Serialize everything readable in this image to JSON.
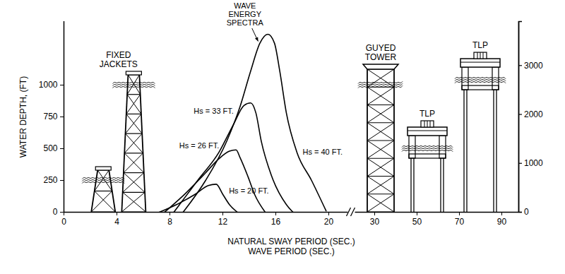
{
  "chart_data": {
    "type": "line",
    "xlabel": "NATURAL SWAY PERIOD (SEC.)\nWAVE PERIOD (SEC.)",
    "ylabel": "WATER DEPTH, (FT)",
    "annotation": "WAVE\nENERGY\nSPECTRA",
    "xlim": [
      0,
      98
    ],
    "xticks": [
      0,
      4,
      8,
      12,
      16,
      20,
      30,
      50,
      70,
      90
    ],
    "ylim": [
      0,
      1500
    ],
    "yticks": [
      0,
      250,
      500,
      750,
      1000
    ],
    "y2lim": [
      0,
      3900
    ],
    "y2ticks": [
      0,
      1000,
      2000,
      3000
    ],
    "grid": false,
    "series": [
      {
        "name": "Hs = 20 FT.",
        "color": "#000000",
        "x": [
          7.2,
          8.5,
          9.9,
          10.9,
          11.5,
          12.0,
          12.5,
          13.1
        ],
        "values": [
          0,
          60,
          140,
          210,
          220,
          140,
          60,
          0
        ]
      },
      {
        "name": "Hs = 26 FT.",
        "color": "#000000",
        "x": [
          7.6,
          9.1,
          10.7,
          11.7,
          12.5,
          13.0,
          13.3,
          13.9,
          14.4,
          15.2
        ],
        "values": [
          0,
          140,
          310,
          420,
          480,
          490,
          430,
          280,
          140,
          0
        ]
      },
      {
        "name": "Hs = 33 FT.",
        "color": "#000000",
        "x": [
          8.3,
          10.1,
          11.7,
          12.8,
          13.6,
          14.1,
          14.5,
          14.9,
          15.7,
          16.8,
          17.3
        ],
        "values": [
          0,
          250,
          470,
          690,
          840,
          860,
          780,
          560,
          280,
          60,
          0
        ]
      },
      {
        "name": "Hs = 40 FT.",
        "color": "#000000",
        "x": [
          9.0,
          10.7,
          12.3,
          13.3,
          14.1,
          14.8,
          15.4,
          15.9,
          16.3,
          16.8,
          17.6,
          18.7,
          19.8
        ],
        "values": [
          0,
          250,
          560,
          830,
          1110,
          1330,
          1400,
          1330,
          1110,
          780,
          470,
          250,
          10
        ]
      }
    ],
    "structures": [
      {
        "label": "FIXED\nJACKETS",
        "type": "jacket",
        "items": [
          {
            "period": 3.0,
            "depth": 250
          },
          {
            "period": 5.3,
            "depth": 1000
          }
        ]
      },
      {
        "label": "GUYED\nTOWER",
        "type": "guyed_tower",
        "items": [
          {
            "period": 33,
            "depth": 1000
          }
        ]
      },
      {
        "label": "TLP",
        "type": "tlp",
        "axis": "y2",
        "items": [
          {
            "period": 55,
            "depth": 1300
          }
        ]
      },
      {
        "label": "TLP",
        "type": "tlp",
        "axis": "y2",
        "items": [
          {
            "period": 80,
            "depth": 2700
          }
        ]
      }
    ]
  }
}
